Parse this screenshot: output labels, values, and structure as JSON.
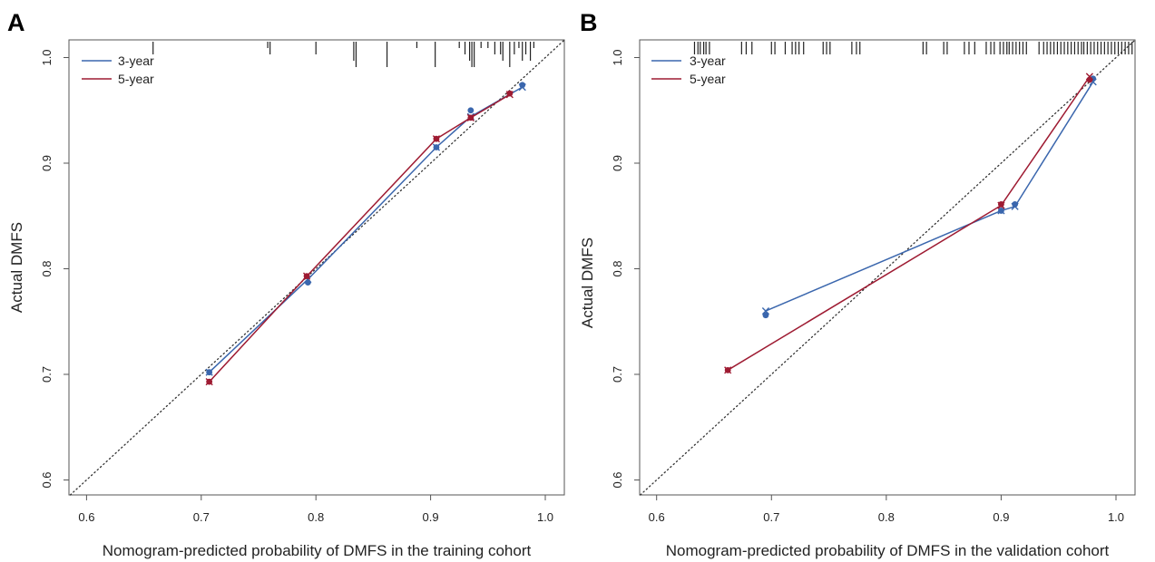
{
  "chart_data": [
    {
      "type": "line",
      "panel_label": "A",
      "title": "",
      "xlabel": "Nomogram-predicted probability of DMFS in the training cohort",
      "ylabel": "Actual DMFS",
      "xlim": [
        0.6,
        1.0
      ],
      "ylim": [
        0.6,
        1.0
      ],
      "x_ticks": [
        "0.6",
        "0.7",
        "0.8",
        "0.9",
        "1.0"
      ],
      "y_ticks": [
        "0.6",
        "0.7",
        "0.8",
        "0.9",
        "1.0"
      ],
      "reference_line": "diagonal dotted",
      "legend_position": "top-left",
      "series": [
        {
          "name": "3-year",
          "color": "#3a66ad",
          "x": [
            0.707,
            0.793,
            0.905,
            0.935,
            0.98
          ],
          "y_bias_corrected": [
            0.702,
            0.79,
            0.915,
            0.944,
            0.972
          ],
          "y_observed": [
            0.702,
            0.787,
            0.915,
            0.95,
            0.974
          ]
        },
        {
          "name": "5-year",
          "color": "#9e1b32",
          "x": [
            0.707,
            0.792,
            0.905,
            0.935,
            0.969
          ],
          "y_bias_corrected": [
            0.693,
            0.793,
            0.923,
            0.943,
            0.965
          ],
          "y_observed": [
            0.693,
            0.793,
            0.923,
            0.943,
            0.966
          ]
        }
      ],
      "rug_ticks": [
        {
          "x": 0.658,
          "len": 2
        },
        {
          "x": 0.758,
          "len": 1
        },
        {
          "x": 0.76,
          "len": 2
        },
        {
          "x": 0.8,
          "len": 2
        },
        {
          "x": 0.833,
          "len": 3
        },
        {
          "x": 0.835,
          "len": 4
        },
        {
          "x": 0.862,
          "len": 4
        },
        {
          "x": 0.888,
          "len": 1
        },
        {
          "x": 0.904,
          "len": 4
        },
        {
          "x": 0.925,
          "len": 1
        },
        {
          "x": 0.93,
          "len": 2
        },
        {
          "x": 0.934,
          "len": 3
        },
        {
          "x": 0.936,
          "len": 4
        },
        {
          "x": 0.938,
          "len": 4
        },
        {
          "x": 0.944,
          "len": 1
        },
        {
          "x": 0.95,
          "len": 1
        },
        {
          "x": 0.956,
          "len": 2
        },
        {
          "x": 0.961,
          "len": 2
        },
        {
          "x": 0.963,
          "len": 3
        },
        {
          "x": 0.969,
          "len": 4
        },
        {
          "x": 0.973,
          "len": 2
        },
        {
          "x": 0.977,
          "len": 1
        },
        {
          "x": 0.98,
          "len": 3
        },
        {
          "x": 0.983,
          "len": 2
        },
        {
          "x": 0.987,
          "len": 3
        },
        {
          "x": 0.99,
          "len": 1
        }
      ]
    },
    {
      "type": "line",
      "panel_label": "B",
      "title": "",
      "xlabel": "Nomogram-predicted probability of DMFS in the validation cohort",
      "ylabel": "Actual DMFS",
      "xlim": [
        0.6,
        1.0
      ],
      "ylim": [
        0.6,
        1.0
      ],
      "x_ticks": [
        "0.6",
        "0.7",
        "0.8",
        "0.9",
        "1.0"
      ],
      "y_ticks": [
        "0.6",
        "0.7",
        "0.8",
        "0.9",
        "1.0"
      ],
      "reference_line": "diagonal dotted",
      "legend_position": "top-left",
      "series": [
        {
          "name": "3-year",
          "color": "#3a66ad",
          "x": [
            0.695,
            0.9,
            0.912,
            0.98
          ],
          "y_bias_corrected": [
            0.76,
            0.855,
            0.859,
            0.977
          ],
          "y_observed": [
            0.756,
            0.855,
            0.861,
            0.98
          ]
        },
        {
          "name": "5-year",
          "color": "#9e1b32",
          "x": [
            0.662,
            0.9,
            0.977
          ],
          "y_bias_corrected": [
            0.704,
            0.86,
            0.982
          ],
          "y_observed": [
            0.704,
            0.861,
            0.979
          ]
        }
      ],
      "rug_ticks": [
        {
          "x": 0.633,
          "len": 2
        },
        {
          "x": 0.636,
          "len": 2
        },
        {
          "x": 0.638,
          "len": 2
        },
        {
          "x": 0.641,
          "len": 2
        },
        {
          "x": 0.643,
          "len": 2
        },
        {
          "x": 0.646,
          "len": 2
        },
        {
          "x": 0.674,
          "len": 2
        },
        {
          "x": 0.678,
          "len": 2
        },
        {
          "x": 0.683,
          "len": 2
        },
        {
          "x": 0.7,
          "len": 2
        },
        {
          "x": 0.703,
          "len": 2
        },
        {
          "x": 0.712,
          "len": 2
        },
        {
          "x": 0.718,
          "len": 2
        },
        {
          "x": 0.721,
          "len": 2
        },
        {
          "x": 0.724,
          "len": 2
        },
        {
          "x": 0.728,
          "len": 2
        },
        {
          "x": 0.745,
          "len": 2
        },
        {
          "x": 0.748,
          "len": 2
        },
        {
          "x": 0.751,
          "len": 2
        },
        {
          "x": 0.77,
          "len": 2
        },
        {
          "x": 0.774,
          "len": 2
        },
        {
          "x": 0.777,
          "len": 2
        },
        {
          "x": 0.832,
          "len": 2
        },
        {
          "x": 0.835,
          "len": 2
        },
        {
          "x": 0.85,
          "len": 2
        },
        {
          "x": 0.853,
          "len": 2
        },
        {
          "x": 0.868,
          "len": 2
        },
        {
          "x": 0.872,
          "len": 2
        },
        {
          "x": 0.877,
          "len": 2
        },
        {
          "x": 0.887,
          "len": 2
        },
        {
          "x": 0.891,
          "len": 2
        },
        {
          "x": 0.894,
          "len": 2
        },
        {
          "x": 0.899,
          "len": 2
        },
        {
          "x": 0.902,
          "len": 2
        },
        {
          "x": 0.905,
          "len": 2
        },
        {
          "x": 0.907,
          "len": 2
        },
        {
          "x": 0.91,
          "len": 2
        },
        {
          "x": 0.913,
          "len": 2
        },
        {
          "x": 0.916,
          "len": 2
        },
        {
          "x": 0.919,
          "len": 2
        },
        {
          "x": 0.922,
          "len": 2
        },
        {
          "x": 0.933,
          "len": 2
        },
        {
          "x": 0.937,
          "len": 2
        },
        {
          "x": 0.94,
          "len": 2
        },
        {
          "x": 0.943,
          "len": 2
        },
        {
          "x": 0.946,
          "len": 2
        },
        {
          "x": 0.949,
          "len": 2
        },
        {
          "x": 0.952,
          "len": 2
        },
        {
          "x": 0.955,
          "len": 2
        },
        {
          "x": 0.958,
          "len": 2
        },
        {
          "x": 0.961,
          "len": 2
        },
        {
          "x": 0.964,
          "len": 2
        },
        {
          "x": 0.967,
          "len": 2
        },
        {
          "x": 0.97,
          "len": 2
        },
        {
          "x": 0.972,
          "len": 2
        },
        {
          "x": 0.975,
          "len": 2
        },
        {
          "x": 0.978,
          "len": 2
        },
        {
          "x": 0.981,
          "len": 2
        },
        {
          "x": 0.984,
          "len": 2
        },
        {
          "x": 0.987,
          "len": 2
        },
        {
          "x": 0.99,
          "len": 2
        },
        {
          "x": 0.993,
          "len": 2
        },
        {
          "x": 0.996,
          "len": 2
        },
        {
          "x": 0.999,
          "len": 2
        },
        {
          "x": 1.002,
          "len": 2
        },
        {
          "x": 1.005,
          "len": 2
        },
        {
          "x": 1.008,
          "len": 2
        },
        {
          "x": 1.011,
          "len": 2
        },
        {
          "x": 1.014,
          "len": 2
        }
      ]
    }
  ]
}
